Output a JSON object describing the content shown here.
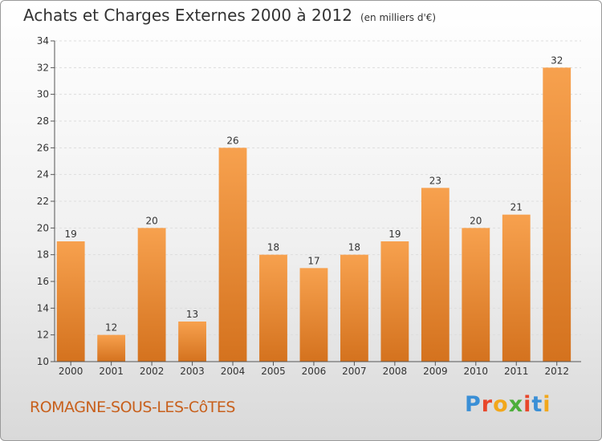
{
  "header": {
    "title": "Achats et Charges Externes 2000 à 2012",
    "unit": "(en milliers d'€)"
  },
  "footer": {
    "commune": "ROMAGNE-SOUS-LES-CôTES",
    "logo": "Proxiti"
  },
  "colors": {
    "bar_top": "#f7a14e",
    "bar_bottom": "#d4721e",
    "commune": "#c8601c"
  },
  "chart_data": {
    "type": "bar",
    "title": "Achats et Charges Externes 2000 à 2012",
    "subtitle": "(en milliers d'€)",
    "xlabel": "",
    "ylabel": "",
    "categories": [
      "2000",
      "2001",
      "2002",
      "2003",
      "2004",
      "2005",
      "2006",
      "2007",
      "2008",
      "2009",
      "2010",
      "2011",
      "2012"
    ],
    "values": [
      19,
      12,
      20,
      13,
      26,
      18,
      17,
      18,
      19,
      23,
      20,
      21,
      32
    ],
    "ylim": [
      10,
      34
    ],
    "yticks": [
      10,
      12,
      14,
      16,
      18,
      20,
      22,
      24,
      26,
      28,
      30,
      32,
      34
    ],
    "grid": true,
    "legend": "none"
  }
}
